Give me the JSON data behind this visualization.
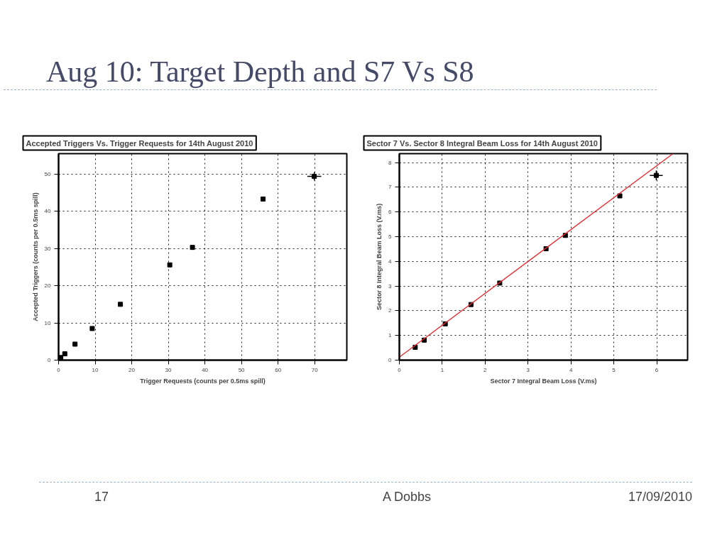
{
  "chart_data": [
    {
      "type": "scatter",
      "title": "Accepted Triggers Vs. Trigger Requests for 14th August 2010",
      "xlabel": "Trigger Requests (counts per 0.5ms spill)",
      "ylabel": "Accepted Triggers (counts per 0.5ms spill)",
      "annotations": [
        "Aug 10: Target Depth and S7 Vs S8",
        "17",
        "A Dobbs",
        "17/09/2010"
      ],
      "xlim": [
        0,
        78.8
      ],
      "ylim": [
        0,
        55.5
      ],
      "xticks": [
        0,
        10,
        20,
        30,
        40,
        50,
        60,
        70
      ],
      "yticks": [
        0,
        10,
        20,
        30,
        40,
        50
      ],
      "grid": true,
      "marker": "square",
      "series": [
        {
          "color": "#000000",
          "x": [
            0.6,
            1.7,
            4.5,
            9.2,
            16.9,
            30.4,
            36.6,
            55.9,
            69.9
          ],
          "values": [
            0.7,
            1.7,
            4.3,
            8.5,
            15.0,
            25.6,
            30.3,
            43.3,
            49.4
          ],
          "errors": [
            null,
            null,
            null,
            null,
            null,
            null,
            null,
            null,
            1.1
          ],
          "xerrors": [
            null,
            null,
            null,
            null,
            null,
            null,
            null,
            null,
            1.9
          ]
        }
      ]
    },
    {
      "type": "scatter",
      "title": "Sector 7 Vs. Sector 8 Integral Beam Loss for 14th August 2010",
      "xlabel": "Sector 7 Integral Beam Loss (V.ms)",
      "ylabel": "Sector 8 Integral Beam Loss (V.ms)",
      "xlim": [
        0,
        6.72
      ],
      "ylim": [
        0,
        8.36
      ],
      "xticks": [
        0,
        1,
        2,
        3,
        4,
        5,
        6
      ],
      "yticks": [
        0,
        1,
        2,
        3,
        4,
        5,
        6,
        7,
        8
      ],
      "grid": true,
      "marker": "square",
      "series": [
        {
          "color": "#000000",
          "x": [
            0.37,
            0.58,
            1.07,
            1.67,
            2.34,
            3.42,
            3.87,
            5.14,
            5.99
          ],
          "values": [
            0.52,
            0.81,
            1.47,
            2.25,
            3.12,
            4.51,
            5.05,
            6.65,
            7.48
          ],
          "errors": [
            null,
            null,
            null,
            null,
            null,
            null,
            null,
            null,
            0.2
          ],
          "xerrors": [
            null,
            null,
            null,
            null,
            null,
            null,
            null,
            null,
            0.15
          ]
        },
        {
          "type": "line",
          "marker": "none",
          "color": "#e8282e",
          "x": [
            0,
            6.38
          ],
          "values": [
            0.12,
            8.36
          ]
        }
      ]
    }
  ]
}
